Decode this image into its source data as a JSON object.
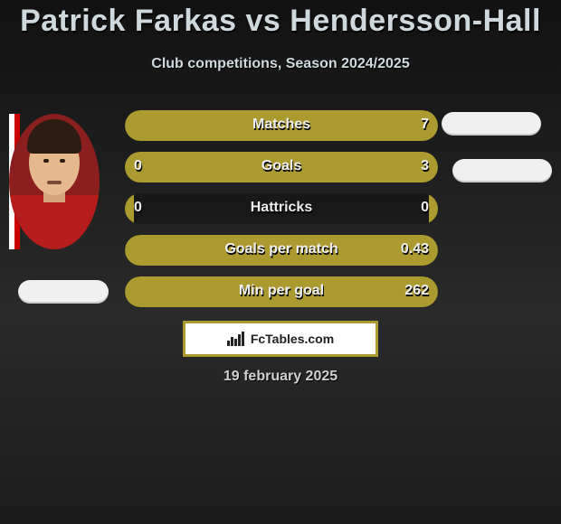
{
  "title": "Patrick Farkas vs Hendersson-Hall",
  "subtitle": "Club competitions, Season 2024/2025",
  "date": "19 february 2025",
  "brand_text": "FcTables.com",
  "colors": {
    "accent": "#ab9a2f",
    "bar_empty": "rgba(0,0,0,0.25)",
    "text": "#eeeeee",
    "brand_border": "#ab9a2f"
  },
  "stats": [
    {
      "label": "Matches",
      "left_value": "",
      "right_value": "7",
      "left_fill_pct": 100,
      "right_fill_pct": 100,
      "left_color": "#ab9a2f",
      "right_color": "#ab9a2f"
    },
    {
      "label": "Goals",
      "left_value": "0",
      "right_value": "3",
      "left_fill_pct": 3,
      "right_fill_pct": 97,
      "left_color": "#ab9a2f",
      "right_color": "#ab9a2f"
    },
    {
      "label": "Hattricks",
      "left_value": "0",
      "right_value": "0",
      "left_fill_pct": 3,
      "right_fill_pct": 3,
      "left_color": "#ab9a2f",
      "right_color": "#ab9a2f"
    },
    {
      "label": "Goals per match",
      "left_value": "",
      "right_value": "0.43",
      "left_fill_pct": 100,
      "right_fill_pct": 100,
      "left_color": "#ab9a2f",
      "right_color": "#ab9a2f"
    },
    {
      "label": "Min per goal",
      "left_value": "",
      "right_value": "262",
      "left_fill_pct": 100,
      "right_fill_pct": 100,
      "left_color": "#ab9a2f",
      "right_color": "#ab9a2f"
    }
  ]
}
